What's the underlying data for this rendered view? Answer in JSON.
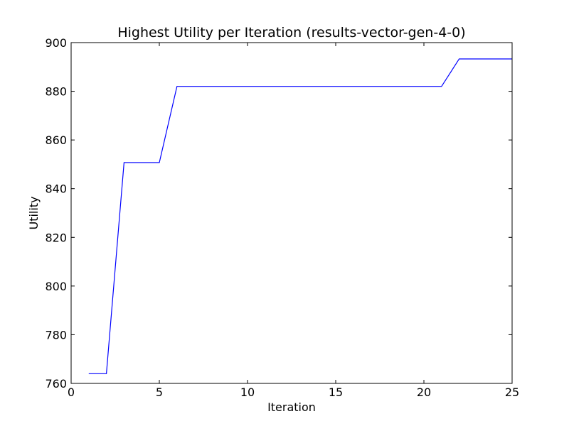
{
  "chart_data": {
    "type": "line",
    "title": "Highest Utility per Iteration (results-vector-gen-4-0)",
    "xlabel": "Iteration",
    "ylabel": "Utility",
    "xlim": [
      0,
      25
    ],
    "ylim": [
      760,
      900
    ],
    "xticks": [
      0,
      5,
      10,
      15,
      20,
      25
    ],
    "yticks": [
      760,
      780,
      800,
      820,
      840,
      860,
      880,
      900
    ],
    "grid": false,
    "legend": "none",
    "series": [
      {
        "color": "#0000ff",
        "x": [
          1,
          2,
          3,
          4,
          5,
          6,
          7,
          8,
          9,
          10,
          11,
          12,
          13,
          14,
          15,
          16,
          17,
          18,
          19,
          20,
          21,
          22,
          23,
          24,
          25
        ],
        "y": [
          764,
          764,
          850.7,
          850.7,
          850.7,
          882,
          882,
          882,
          882,
          882,
          882,
          882,
          882,
          882,
          882,
          882,
          882,
          882,
          882,
          882,
          882,
          893.3,
          893.3,
          893.3,
          893.3
        ]
      }
    ]
  }
}
